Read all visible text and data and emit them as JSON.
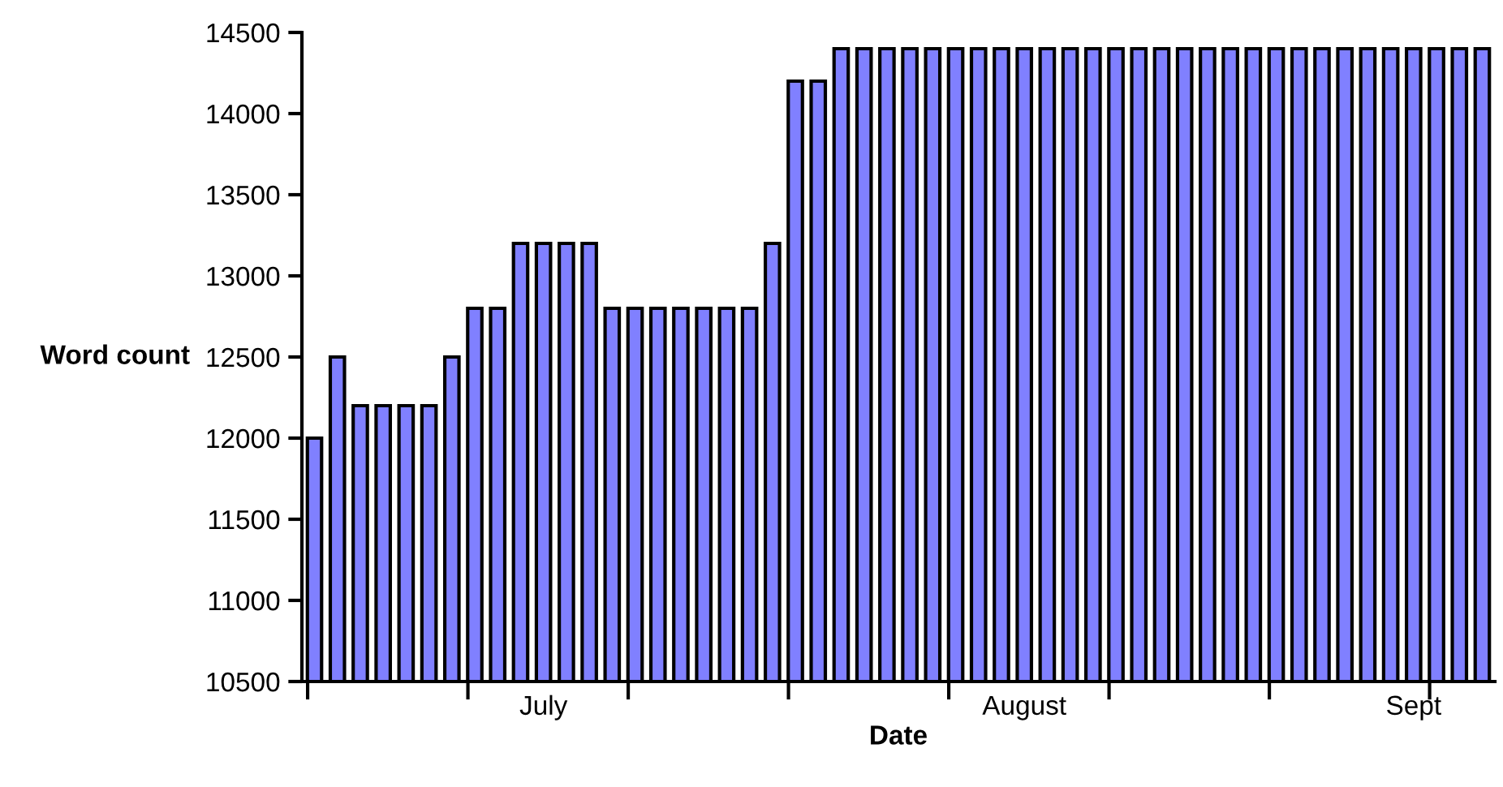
{
  "chart_data": {
    "type": "bar",
    "xlabel": "Date",
    "ylabel": "Word count",
    "categories": [
      null,
      null,
      null,
      null,
      null,
      null,
      null,
      null,
      null,
      null,
      "July",
      null,
      null,
      null,
      null,
      null,
      null,
      null,
      null,
      null,
      null,
      null,
      null,
      null,
      null,
      null,
      null,
      null,
      null,
      null,
      null,
      "August",
      null,
      null,
      null,
      null,
      null,
      null,
      null,
      null,
      null,
      null,
      null,
      null,
      null,
      null,
      null,
      null,
      "Sept",
      null,
      null,
      null
    ],
    "series": [
      {
        "color": "#8080ff",
        "values": [
          12000,
          12500,
          12200,
          12200,
          12200,
          12200,
          12500,
          12800,
          12800,
          13200,
          13200,
          13200,
          13200,
          12800,
          12800,
          12800,
          12800,
          12800,
          12800,
          12800,
          13200,
          14200,
          14200,
          14400,
          14400,
          14400,
          14400,
          14400,
          14400,
          14400,
          14400,
          14400,
          14400,
          14400,
          14400,
          14400,
          14400,
          14400,
          14400,
          14400,
          14400,
          14400,
          14400,
          14400,
          14400,
          14400,
          14400,
          14400,
          14400,
          14400,
          14400,
          14400
        ]
      }
    ],
    "ylim": [
      10500,
      14500
    ],
    "yticks": [
      10500,
      11000,
      11500,
      12000,
      12500,
      13000,
      13500,
      14000,
      14500
    ],
    "grid": false,
    "legend": false
  }
}
